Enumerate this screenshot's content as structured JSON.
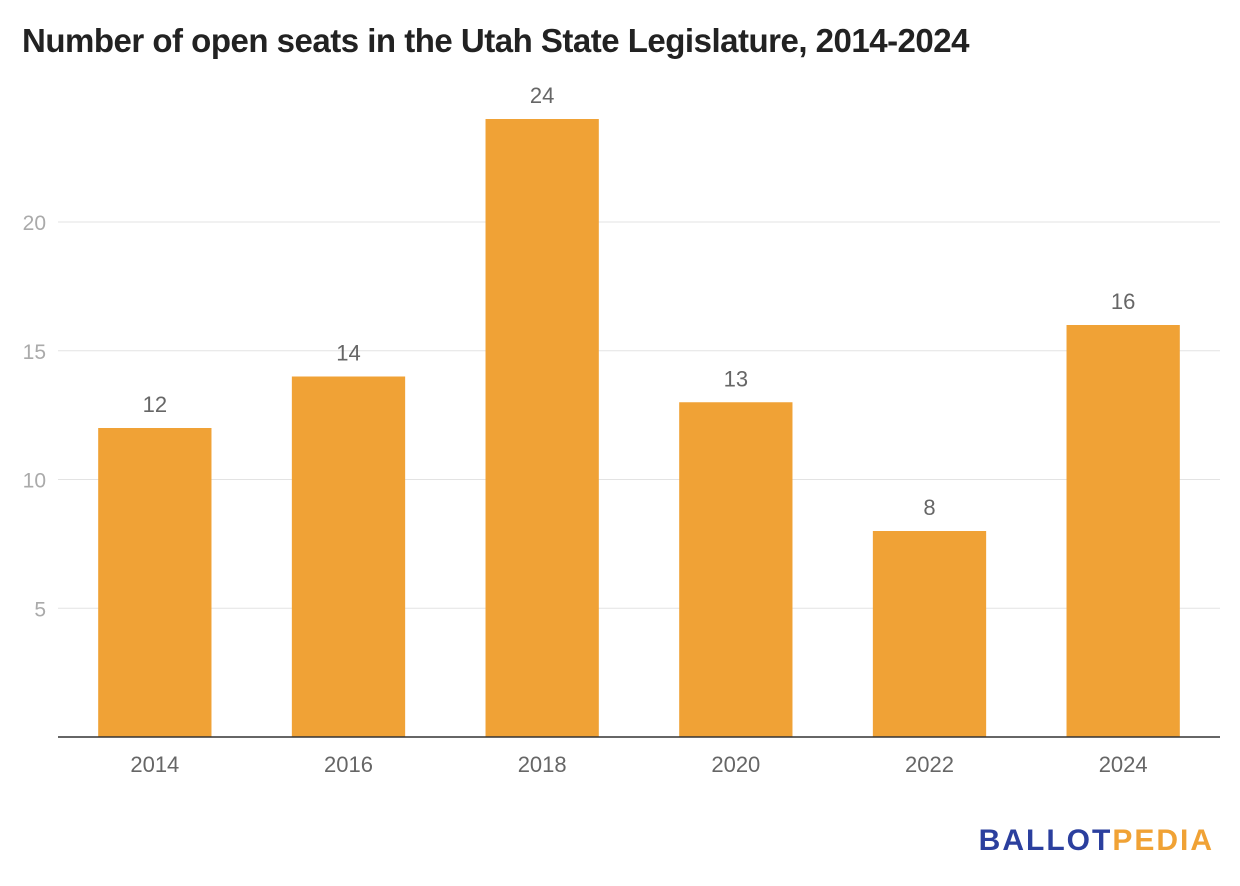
{
  "chart_data": {
    "type": "bar",
    "title": "Number of open seats in the Utah State Legislature, 2014-2024",
    "categories": [
      "2014",
      "2016",
      "2018",
      "2020",
      "2022",
      "2024"
    ],
    "values": [
      12,
      14,
      24,
      13,
      8,
      16
    ],
    "data_labels": [
      "12",
      "14",
      "24",
      "13",
      "8",
      "16"
    ],
    "xlabel": "",
    "ylabel": "",
    "ylim": [
      0,
      25
    ],
    "yticks": [
      5,
      10,
      15,
      20
    ],
    "grid": true,
    "bar_color": "#f0a236",
    "legend": "none"
  },
  "branding": {
    "logo_part1": "BALLOT",
    "logo_part2": "PEDIA",
    "color_part1": "#2b3f9e",
    "color_part2": "#f0a235"
  }
}
